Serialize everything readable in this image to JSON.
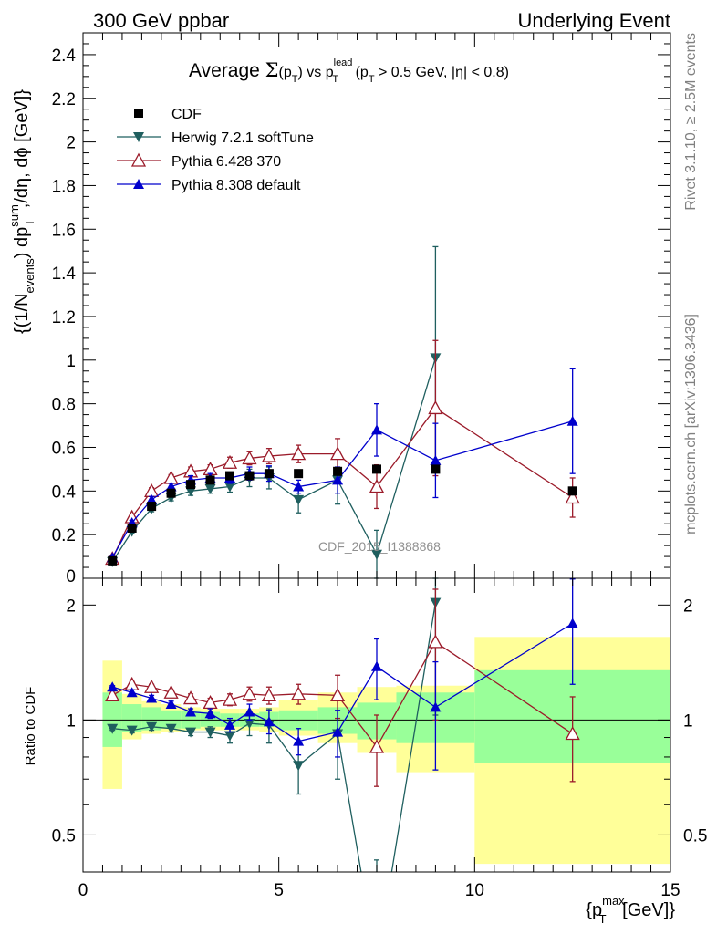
{
  "header": {
    "left": "300 GeV ppbar",
    "right": "Underlying Event"
  },
  "side_labels": {
    "rivet": "Rivet 3.1.10, ≥ 2.5M events",
    "mcplots": "mcplots.cern.ch [arXiv:1306.3436]"
  },
  "watermark": "CDF_2015_I1388868",
  "chart_data": {
    "type": "scatter",
    "title": {
      "part1": "Average ",
      "sigma": "Σ",
      "part2": "(p",
      "sub_T": "T",
      "part3": ") vs p",
      "sup_lead": "lead",
      "sub_T2": "T",
      "part4": " (p",
      "sub_T3": "T",
      "part5": " > 0.5 GeV, |η| < 0.8)"
    },
    "ylabel": {
      "part1": "{(1/N",
      "sub_events": "events",
      "part2": ") dp",
      "sup_sum": "sum",
      "sub_T": "T",
      "part3": ",/dη, dϕ [GeV]}"
    },
    "ratio_ylabel": "Ratio to CDF",
    "xlabel": {
      "part1": "{p",
      "sup_max": "max",
      "sub_T": "T",
      "part2": " [GeV]}"
    },
    "xlim": [
      0,
      15
    ],
    "ylim": [
      0,
      2.5
    ],
    "ratio_ylim": [
      0.4,
      2.35
    ],
    "ratio_log": true,
    "x_ticks": [
      0,
      5,
      10,
      15
    ],
    "y_ticks": [
      0.2,
      0.4,
      0.6,
      0.8,
      1,
      1.2,
      1.4,
      1.6,
      1.8,
      2,
      2.2,
      2.4
    ],
    "y_tick_labels": [
      "0.2",
      "0.4",
      "0.6",
      "0.8",
      "1",
      "1.2",
      "1.4",
      "1.6",
      "1.8",
      "2",
      "2.2",
      "2.4"
    ],
    "ratio_ticks": [
      0.5,
      1,
      2
    ],
    "ratio_tick_labels": [
      "0.5",
      "1",
      "2"
    ],
    "bins": [
      [
        0.5,
        1.0
      ],
      [
        1.0,
        1.5
      ],
      [
        1.5,
        2.0
      ],
      [
        2.0,
        2.5
      ],
      [
        2.5,
        3.0
      ],
      [
        3.0,
        3.5
      ],
      [
        3.5,
        4.0
      ],
      [
        4.0,
        4.5
      ],
      [
        4.5,
        5.0
      ],
      [
        5.0,
        6.0
      ],
      [
        6.0,
        7.0
      ],
      [
        7.0,
        8.0
      ],
      [
        8.0,
        10.0
      ],
      [
        10.0,
        15.0
      ]
    ],
    "x": [
      0.75,
      1.25,
      1.75,
      2.25,
      2.75,
      3.25,
      3.75,
      4.25,
      4.75,
      5.5,
      6.5,
      7.5,
      9.0,
      12.5
    ],
    "band_inner": [
      [
        0.85,
        1.18
      ],
      [
        0.93,
        1.1
      ],
      [
        0.94,
        1.08
      ],
      [
        0.95,
        1.06
      ],
      [
        0.95,
        1.06
      ],
      [
        0.96,
        1.05
      ],
      [
        0.96,
        1.04
      ],
      [
        0.96,
        1.04
      ],
      [
        0.96,
        1.05
      ],
      [
        0.94,
        1.06
      ],
      [
        0.92,
        1.08
      ],
      [
        0.89,
        1.11
      ],
      [
        0.87,
        1.18
      ],
      [
        0.77,
        1.35
      ]
    ],
    "band_outer": [
      [
        0.66,
        1.43
      ],
      [
        0.89,
        1.17
      ],
      [
        0.92,
        1.12
      ],
      [
        0.93,
        1.1
      ],
      [
        0.94,
        1.08
      ],
      [
        0.94,
        1.07
      ],
      [
        0.94,
        1.07
      ],
      [
        0.94,
        1.07
      ],
      [
        0.93,
        1.08
      ],
      [
        0.91,
        1.13
      ],
      [
        0.87,
        1.18
      ],
      [
        0.82,
        1.22
      ],
      [
        0.73,
        1.23
      ],
      [
        0.42,
        1.65
      ]
    ],
    "series": [
      {
        "name": "CDF",
        "color": "#000000",
        "marker": "square",
        "y": [
          0.08,
          0.23,
          0.33,
          0.39,
          0.43,
          0.45,
          0.47,
          0.47,
          0.48,
          0.48,
          0.49,
          0.5,
          0.5,
          0.4
        ],
        "yerr": [
          0.005,
          0.01,
          0.01,
          0.01,
          0.01,
          0.01,
          0.01,
          0.01,
          0.01,
          0.01,
          0.01,
          0.015,
          0.02,
          0.02
        ]
      },
      {
        "name": "Herwig 7.2.1 softTune",
        "color": "#1f5f5f",
        "marker": "triangle-down",
        "y": [
          0.076,
          0.215,
          0.32,
          0.37,
          0.4,
          0.41,
          0.42,
          0.46,
          0.46,
          0.36,
          0.45,
          0.11,
          1.01,
          null
        ],
        "yerr": [
          0.005,
          0.01,
          0.015,
          0.015,
          0.02,
          0.02,
          0.025,
          0.04,
          0.05,
          0.06,
          0.11,
          0.11,
          0.51,
          null
        ],
        "ratio": [
          0.95,
          0.94,
          0.96,
          0.95,
          0.93,
          0.93,
          0.91,
          0.98,
          0.97,
          0.76,
          0.92,
          0.23,
          2.03,
          null
        ],
        "ratio_err": [
          0.01,
          0.015,
          0.02,
          0.02,
          0.02,
          0.03,
          0.04,
          0.07,
          0.1,
          0.12,
          0.22,
          0.2,
          1.0,
          null
        ]
      },
      {
        "name": "Pythia 6.428 370",
        "color": "#9b1b2a",
        "marker": "triangle-up-open",
        "y": [
          0.09,
          0.28,
          0.4,
          0.46,
          0.49,
          0.5,
          0.53,
          0.55,
          0.56,
          0.57,
          0.57,
          0.42,
          0.78,
          0.37
        ],
        "yerr": [
          0.005,
          0.01,
          0.015,
          0.015,
          0.02,
          0.02,
          0.025,
          0.03,
          0.035,
          0.04,
          0.07,
          0.1,
          0.31,
          0.09
        ],
        "ratio": [
          1.16,
          1.24,
          1.22,
          1.18,
          1.14,
          1.11,
          1.13,
          1.17,
          1.16,
          1.17,
          1.16,
          0.85,
          1.6,
          0.92
        ],
        "ratio_err": [
          0.01,
          0.02,
          0.02,
          0.02,
          0.03,
          0.03,
          0.04,
          0.05,
          0.06,
          0.07,
          0.15,
          0.18,
          0.6,
          0.23
        ]
      },
      {
        "name": "Pythia 8.308 default",
        "color": "#0000cc",
        "marker": "triangle-up",
        "y": [
          0.095,
          0.255,
          0.36,
          0.42,
          0.45,
          0.46,
          0.46,
          0.48,
          0.48,
          0.42,
          0.45,
          0.68,
          0.54,
          0.72
        ],
        "yerr": [
          0.005,
          0.01,
          0.015,
          0.015,
          0.02,
          0.02,
          0.025,
          0.03,
          0.035,
          0.03,
          0.06,
          0.12,
          0.17,
          0.24
        ],
        "ratio": [
          1.22,
          1.18,
          1.14,
          1.1,
          1.05,
          1.04,
          0.97,
          1.05,
          0.99,
          0.88,
          0.93,
          1.38,
          1.08,
          1.79
        ],
        "ratio_err": [
          0.01,
          0.02,
          0.02,
          0.02,
          0.02,
          0.03,
          0.04,
          0.05,
          0.07,
          0.07,
          0.13,
          0.25,
          0.34,
          0.55
        ]
      }
    ],
    "legend_position": "top-left"
  }
}
